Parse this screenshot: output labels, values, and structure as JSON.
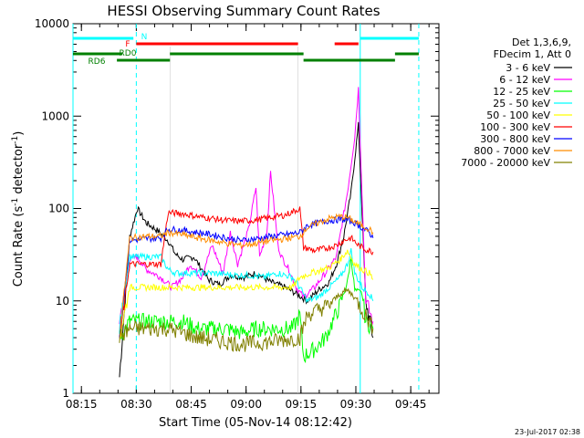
{
  "chart_data": {
    "type": "line",
    "title": "HESSI Observing Summary Count Rates",
    "xlabel": "Start Time (05-Nov-14 08:12:42)",
    "ylabel_main": "Count Rate (s",
    "ylabel_sup1": "-1",
    "ylabel_mid": " detector",
    "ylabel_sup2": "-1",
    "ylabel_close": ")",
    "y_scale": "log",
    "ylim": [
      1,
      10000
    ],
    "xlim_minutes": [
      0,
      100
    ],
    "x_ticks": [
      {
        "m": 2.3,
        "label": "08:15"
      },
      {
        "m": 17.3,
        "label": "08:30"
      },
      {
        "m": 32.3,
        "label": "08:45"
      },
      {
        "m": 47.3,
        "label": "09:00"
      },
      {
        "m": 62.3,
        "label": "09:15"
      },
      {
        "m": 77.3,
        "label": "09:30"
      },
      {
        "m": 92.3,
        "label": "09:45"
      }
    ],
    "y_ticks": [
      {
        "v": 1,
        "label": "1"
      },
      {
        "v": 10,
        "label": "10"
      },
      {
        "v": 100,
        "label": "100"
      },
      {
        "v": 1000,
        "label": "1000"
      },
      {
        "v": 10000,
        "label": "10000"
      }
    ],
    "legend_header": [
      "Det 1,3,6,9,",
      "FDecim 1, Att 0"
    ],
    "series": [
      {
        "name": "3 - 6 keV",
        "color": "#000000",
        "points": [
          [
            12.7,
            1.5
          ],
          [
            15.5,
            50
          ],
          [
            17.6,
            100
          ],
          [
            20,
            70
          ],
          [
            23,
            58
          ],
          [
            26,
            45
          ],
          [
            28,
            32
          ],
          [
            30,
            28
          ],
          [
            33,
            30
          ],
          [
            37,
            17
          ],
          [
            40,
            15
          ],
          [
            43,
            19
          ],
          [
            47,
            18
          ],
          [
            50,
            20
          ],
          [
            54,
            16
          ],
          [
            58,
            14
          ],
          [
            61,
            12
          ],
          [
            64,
            10
          ],
          [
            67,
            13
          ],
          [
            70,
            16
          ],
          [
            72,
            25
          ],
          [
            74,
            50
          ],
          [
            76,
            150
          ],
          [
            78,
            800
          ],
          [
            80,
            10
          ],
          [
            82,
            4
          ]
        ]
      },
      {
        "name": "6 - 12 keV",
        "color": "#ff00ff",
        "points": [
          [
            12.7,
            6
          ],
          [
            15.5,
            28
          ],
          [
            17.6,
            30
          ],
          [
            20,
            22
          ],
          [
            24,
            18
          ],
          [
            27,
            14
          ],
          [
            30,
            18
          ],
          [
            32,
            25
          ],
          [
            35,
            18
          ],
          [
            38,
            40
          ],
          [
            41,
            20
          ],
          [
            43,
            55
          ],
          [
            45,
            25
          ],
          [
            48,
            60
          ],
          [
            50,
            170
          ],
          [
            51,
            30
          ],
          [
            53,
            55
          ],
          [
            54,
            250
          ],
          [
            56,
            40
          ],
          [
            57,
            30
          ],
          [
            59,
            22
          ],
          [
            61,
            14
          ],
          [
            63,
            11
          ],
          [
            66,
            14
          ],
          [
            69,
            20
          ],
          [
            72,
            30
          ],
          [
            75,
            150
          ],
          [
            77,
            600
          ],
          [
            78,
            2000
          ],
          [
            80,
            10
          ],
          [
            82,
            6
          ]
        ]
      },
      {
        "name": "12 - 25 keV",
        "color": "#00ff00",
        "points": [
          [
            12.7,
            4
          ],
          [
            15.5,
            6
          ],
          [
            20,
            6
          ],
          [
            24,
            6
          ],
          [
            27,
            6
          ],
          [
            30,
            6
          ],
          [
            34,
            5
          ],
          [
            38,
            5
          ],
          [
            42,
            5
          ],
          [
            46,
            4.5
          ],
          [
            50,
            5
          ],
          [
            54,
            5
          ],
          [
            58,
            5
          ],
          [
            60,
            5
          ],
          [
            62,
            7
          ],
          [
            63,
            2.5
          ],
          [
            66,
            3
          ],
          [
            69,
            4
          ],
          [
            71,
            6
          ],
          [
            73,
            9
          ],
          [
            75,
            16
          ],
          [
            76,
            30
          ],
          [
            77,
            13
          ],
          [
            79,
            12
          ],
          [
            80,
            6
          ],
          [
            82,
            5
          ]
        ]
      },
      {
        "name": "25 - 50 keV",
        "color": "#00ffff",
        "points": [
          [
            12.7,
            5
          ],
          [
            15.5,
            30
          ],
          [
            20,
            30
          ],
          [
            24,
            30
          ],
          [
            26,
            22
          ],
          [
            28,
            20
          ],
          [
            32,
            20
          ],
          [
            38,
            20
          ],
          [
            44,
            19
          ],
          [
            48,
            19
          ],
          [
            52,
            18
          ],
          [
            56,
            20
          ],
          [
            60,
            18
          ],
          [
            62,
            14
          ],
          [
            64,
            10
          ],
          [
            67,
            11
          ],
          [
            70,
            14
          ],
          [
            73,
            18
          ],
          [
            75,
            25
          ],
          [
            76,
            35
          ],
          [
            77,
            20
          ],
          [
            79,
            14
          ],
          [
            81,
            12
          ],
          [
            82,
            10
          ]
        ]
      },
      {
        "name": "50 - 100 keV",
        "color": "#ffff00",
        "points": [
          [
            12.7,
            4
          ],
          [
            15.5,
            14
          ],
          [
            20,
            14
          ],
          [
            24,
            14
          ],
          [
            26,
            14
          ],
          [
            30,
            14
          ],
          [
            60,
            14
          ],
          [
            62,
            18
          ],
          [
            65,
            20
          ],
          [
            70,
            23
          ],
          [
            73,
            28
          ],
          [
            75,
            35
          ],
          [
            77,
            25
          ],
          [
            79,
            22
          ],
          [
            81,
            20
          ],
          [
            82,
            17
          ]
        ]
      },
      {
        "name": "100 - 300 keV",
        "color": "#ff0000",
        "points": [
          [
            12.7,
            4
          ],
          [
            15.5,
            25
          ],
          [
            20,
            25
          ],
          [
            24,
            25
          ],
          [
            26,
            90
          ],
          [
            30,
            88
          ],
          [
            34,
            82
          ],
          [
            38,
            78
          ],
          [
            42,
            74
          ],
          [
            46,
            73
          ],
          [
            50,
            75
          ],
          [
            54,
            80
          ],
          [
            58,
            85
          ],
          [
            62,
            100
          ],
          [
            63,
            38
          ],
          [
            66,
            35
          ],
          [
            69,
            37
          ],
          [
            72,
            40
          ],
          [
            74,
            45
          ],
          [
            76,
            48
          ],
          [
            78,
            40
          ],
          [
            80,
            36
          ],
          [
            82,
            34
          ]
        ]
      },
      {
        "name": "300 - 800 keV",
        "color": "#0000ff",
        "points": [
          [
            12.7,
            4
          ],
          [
            15.5,
            45
          ],
          [
            20,
            47
          ],
          [
            24,
            48
          ],
          [
            26,
            60
          ],
          [
            30,
            58
          ],
          [
            34,
            55
          ],
          [
            38,
            52
          ],
          [
            42,
            48
          ],
          [
            46,
            45
          ],
          [
            50,
            47
          ],
          [
            54,
            50
          ],
          [
            58,
            52
          ],
          [
            62,
            55
          ],
          [
            64,
            65
          ],
          [
            67,
            70
          ],
          [
            70,
            74
          ],
          [
            73,
            76
          ],
          [
            75,
            75
          ],
          [
            77,
            70
          ],
          [
            79,
            62
          ],
          [
            81,
            55
          ],
          [
            82,
            48
          ]
        ]
      },
      {
        "name": "800 - 7000 keV",
        "color": "#ff8c00",
        "points": [
          [
            12.7,
            4
          ],
          [
            15.5,
            48
          ],
          [
            20,
            50
          ],
          [
            24,
            50
          ],
          [
            26,
            55
          ],
          [
            30,
            52
          ],
          [
            34,
            48
          ],
          [
            38,
            45
          ],
          [
            42,
            42
          ],
          [
            46,
            40
          ],
          [
            50,
            42
          ],
          [
            54,
            45
          ],
          [
            58,
            47
          ],
          [
            62,
            50
          ],
          [
            64,
            62
          ],
          [
            67,
            70
          ],
          [
            70,
            78
          ],
          [
            73,
            82
          ],
          [
            75,
            80
          ],
          [
            77,
            72
          ],
          [
            79,
            65
          ],
          [
            81,
            60
          ],
          [
            82,
            55
          ]
        ]
      },
      {
        "name": "7000 - 20000 keV",
        "color": "#808000",
        "points": [
          [
            12.7,
            4
          ],
          [
            15.5,
            5
          ],
          [
            20,
            5
          ],
          [
            24,
            5
          ],
          [
            26,
            5
          ],
          [
            30,
            4.5
          ],
          [
            34,
            4
          ],
          [
            38,
            3.8
          ],
          [
            42,
            3.6
          ],
          [
            46,
            3.4
          ],
          [
            50,
            3.5
          ],
          [
            54,
            3.6
          ],
          [
            58,
            3.8
          ],
          [
            62,
            4
          ],
          [
            64,
            7
          ],
          [
            67,
            8
          ],
          [
            70,
            9
          ],
          [
            73,
            12
          ],
          [
            75,
            13
          ],
          [
            77,
            11
          ],
          [
            79,
            8
          ],
          [
            81,
            6
          ],
          [
            82,
            5
          ]
        ]
      }
    ],
    "flags": [
      {
        "label": "N",
        "color": "#00ffff",
        "segments": [
          [
            0,
            16.5
          ],
          [
            78.5,
            94.5
          ]
        ]
      },
      {
        "label": "F",
        "color": "#ff0000",
        "segments": [
          [
            17.3,
            61.5
          ],
          [
            71.5,
            78
          ]
        ]
      },
      {
        "label": "RD0",
        "color": "#008000",
        "segments": [
          [
            0,
            13.5
          ],
          [
            26.5,
            63
          ],
          [
            88,
            94.5
          ]
        ]
      },
      {
        "label": "RD6",
        "color": "#008000",
        "segments": [
          [
            12,
            26.5
          ],
          [
            63,
            88
          ]
        ]
      }
    ],
    "night_lines": [
      {
        "m": 0,
        "style": "solid"
      },
      {
        "m": 17.3,
        "style": "dashed"
      },
      {
        "m": 78.5,
        "style": "solid"
      },
      {
        "m": 94.5,
        "style": "dashed"
      }
    ],
    "saa_lines": [
      26.5,
      61.5
    ],
    "grid": false,
    "legend_position": "right"
  },
  "footer_date": "23-Jul-2017 02:38"
}
